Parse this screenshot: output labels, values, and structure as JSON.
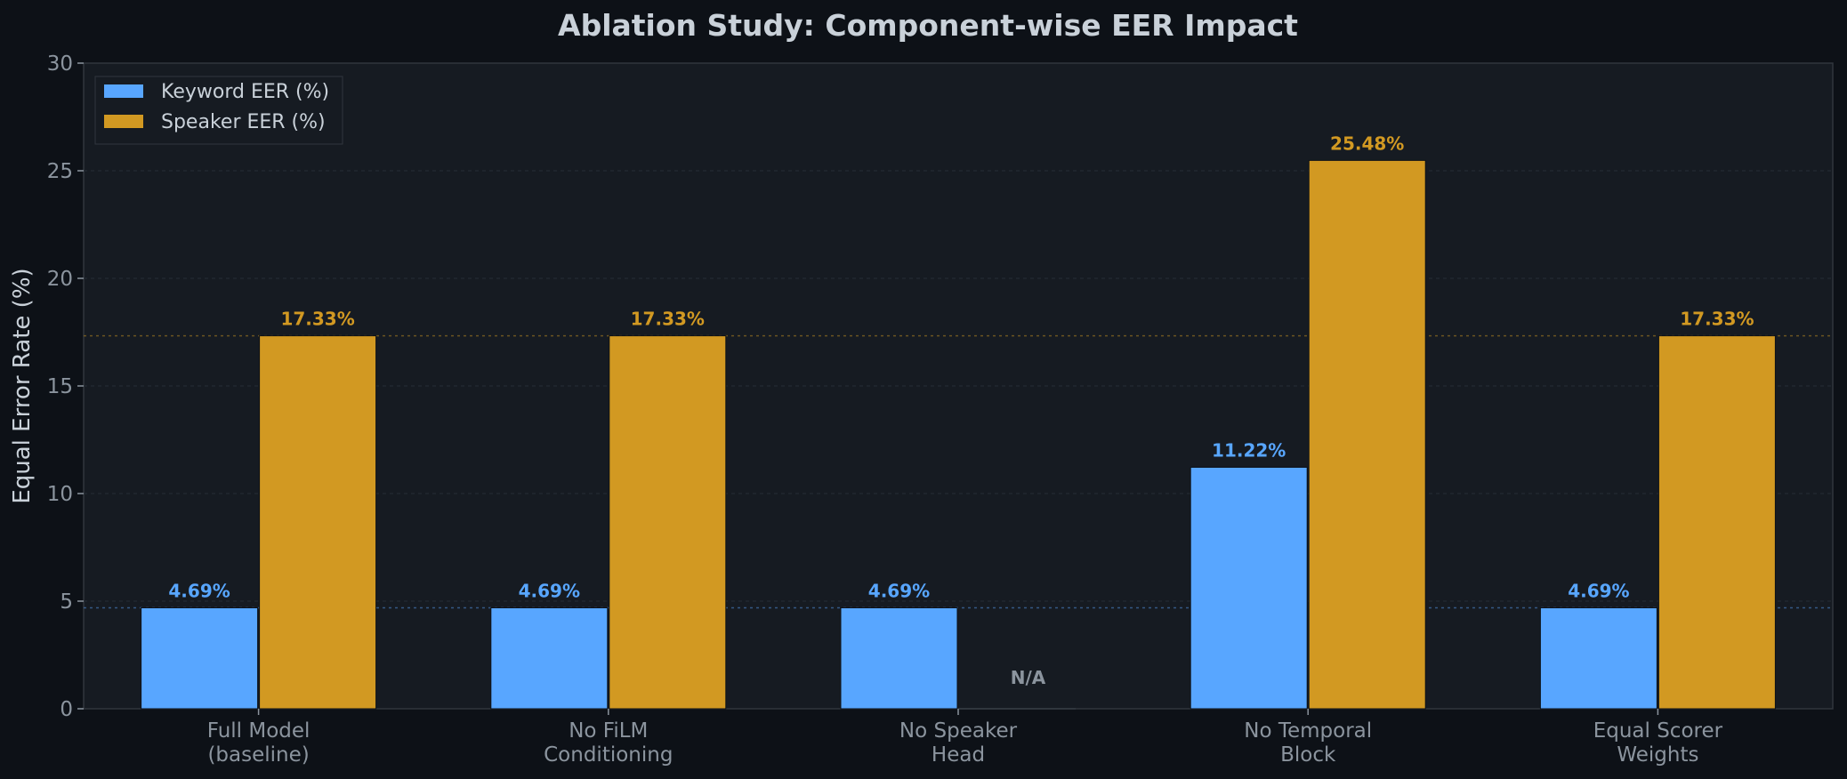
{
  "chart_data": {
    "type": "bar",
    "title": "Ablation Study: Component-wise EER Impact",
    "ylabel": "Equal Error Rate (%)",
    "xlabel": "",
    "ylim": [
      0,
      30
    ],
    "yticks": [
      0,
      5,
      10,
      15,
      20,
      25,
      30
    ],
    "categories": [
      [
        "Full Model",
        "(baseline)"
      ],
      [
        "No FiLM",
        "Conditioning"
      ],
      [
        "No Speaker",
        "Head"
      ],
      [
        "No Temporal",
        "Block"
      ],
      [
        "Equal Scorer",
        "Weights"
      ]
    ],
    "series": [
      {
        "name": "Keyword EER (%)",
        "color": "#58a6ff",
        "values": [
          4.69,
          4.69,
          4.69,
          11.22,
          4.69
        ],
        "labels": [
          "4.69%",
          "4.69%",
          "4.69%",
          "11.22%",
          "4.69%"
        ]
      },
      {
        "name": "Speaker EER (%)",
        "color": "#d29922",
        "values": [
          17.33,
          17.33,
          null,
          25.48,
          17.33
        ],
        "labels": [
          "17.33%",
          "17.33%",
          "N/A",
          "25.48%",
          "17.33%"
        ]
      }
    ],
    "reference_lines": [
      4.69,
      17.33
    ],
    "legend": "top-left",
    "grid": true
  }
}
